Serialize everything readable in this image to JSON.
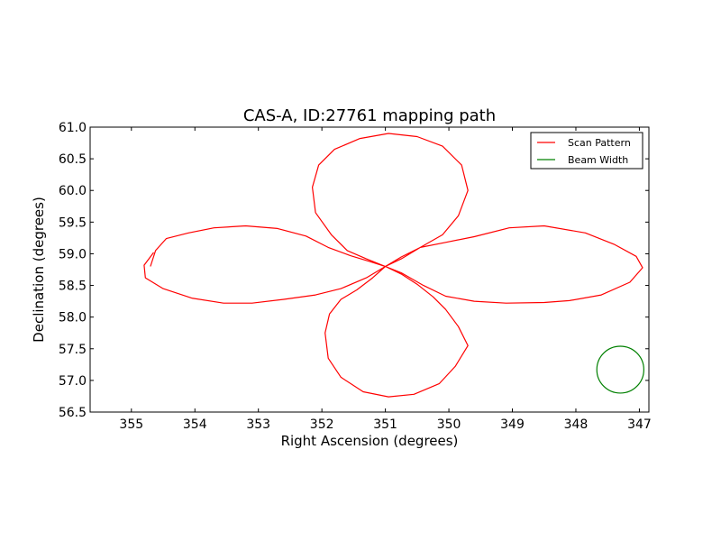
{
  "chart_data": {
    "type": "line",
    "title": "CAS-A, ID:27761 mapping path",
    "xlabel": "Right Ascension (degrees)",
    "ylabel": "Declination (degrees)",
    "xlim": [
      355.65,
      346.85
    ],
    "ylim": [
      56.5,
      61.0
    ],
    "x_inverted": true,
    "xticks": [
      355,
      354,
      353,
      352,
      351,
      350,
      349,
      348,
      347
    ],
    "yticks": [
      56.5,
      57.0,
      57.5,
      58.0,
      58.5,
      59.0,
      59.5,
      60.0,
      60.5,
      61.0
    ],
    "grid": false,
    "legend_placement": "top-right",
    "series": [
      {
        "name": "Scan Pattern",
        "color": "#ff0000",
        "kind": "path",
        "points": [
          [
            354.7,
            58.8
          ],
          [
            354.62,
            59.05
          ],
          [
            354.45,
            59.24
          ],
          [
            354.1,
            59.33
          ],
          [
            353.7,
            59.41
          ],
          [
            353.2,
            59.44
          ],
          [
            352.7,
            59.4
          ],
          [
            352.25,
            59.28
          ],
          [
            351.9,
            59.1
          ],
          [
            351.55,
            58.97
          ],
          [
            351.25,
            58.88
          ],
          [
            351.0,
            58.8
          ],
          [
            350.75,
            58.7
          ],
          [
            350.4,
            58.5
          ],
          [
            350.05,
            58.33
          ],
          [
            349.6,
            58.25
          ],
          [
            349.1,
            58.22
          ],
          [
            348.5,
            58.23
          ],
          [
            348.1,
            58.26
          ],
          [
            347.6,
            58.35
          ],
          [
            347.15,
            58.55
          ],
          [
            346.95,
            58.78
          ],
          [
            347.05,
            58.96
          ],
          [
            347.4,
            59.15
          ],
          [
            347.85,
            59.33
          ],
          [
            348.5,
            59.44
          ],
          [
            349.05,
            59.41
          ],
          [
            349.6,
            59.27
          ],
          [
            350.05,
            59.18
          ],
          [
            350.45,
            59.1
          ],
          [
            350.75,
            58.95
          ],
          [
            351.0,
            58.8
          ],
          [
            351.2,
            58.62
          ],
          [
            351.45,
            58.43
          ],
          [
            351.7,
            58.28
          ],
          [
            351.88,
            58.05
          ],
          [
            351.95,
            57.75
          ],
          [
            351.9,
            57.35
          ],
          [
            351.7,
            57.05
          ],
          [
            351.35,
            56.82
          ],
          [
            350.95,
            56.74
          ],
          [
            350.55,
            56.78
          ],
          [
            350.15,
            56.95
          ],
          [
            349.9,
            57.22
          ],
          [
            349.7,
            57.55
          ],
          [
            349.85,
            57.85
          ],
          [
            350.05,
            58.12
          ],
          [
            350.25,
            58.32
          ],
          [
            350.5,
            58.52
          ],
          [
            350.75,
            58.68
          ],
          [
            351.0,
            58.8
          ],
          [
            351.3,
            58.92
          ],
          [
            351.6,
            59.05
          ],
          [
            351.85,
            59.3
          ],
          [
            352.1,
            59.65
          ],
          [
            352.15,
            60.05
          ],
          [
            352.05,
            60.4
          ],
          [
            351.8,
            60.65
          ],
          [
            351.4,
            60.82
          ],
          [
            350.95,
            60.9
          ],
          [
            350.5,
            60.85
          ],
          [
            350.1,
            60.7
          ],
          [
            349.8,
            60.4
          ],
          [
            349.7,
            60.0
          ],
          [
            349.85,
            59.6
          ],
          [
            350.1,
            59.3
          ],
          [
            350.45,
            59.1
          ],
          [
            350.75,
            58.92
          ],
          [
            351.0,
            58.8
          ],
          [
            351.3,
            58.62
          ],
          [
            351.7,
            58.45
          ],
          [
            352.1,
            58.35
          ],
          [
            352.6,
            58.28
          ],
          [
            353.1,
            58.22
          ],
          [
            353.55,
            58.22
          ],
          [
            354.05,
            58.3
          ],
          [
            354.5,
            58.45
          ],
          [
            354.78,
            58.62
          ],
          [
            354.8,
            58.82
          ],
          [
            354.65,
            59.02
          ]
        ]
      },
      {
        "name": "Beam Width",
        "color": "#008000",
        "kind": "circle",
        "center": [
          347.3,
          57.17
        ],
        "radius_deg": 0.37
      }
    ]
  }
}
